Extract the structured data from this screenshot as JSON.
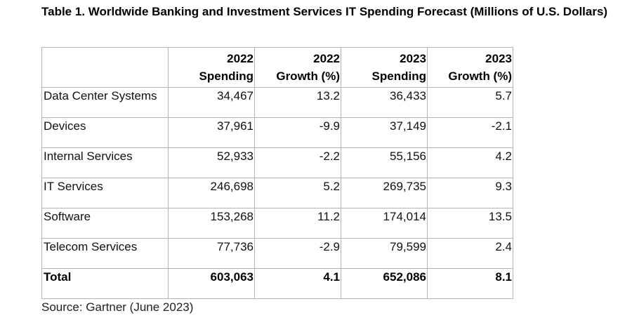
{
  "title": "Table 1. Worldwide Banking and Investment Services IT Spending Forecast (Millions of U.S. Dollars)",
  "headers": [
    {
      "line1": "",
      "line2": ""
    },
    {
      "line1": "2022",
      "line2": "Spending"
    },
    {
      "line1": "2022",
      "line2": "Growth (%)"
    },
    {
      "line1": "2023",
      "line2": "Spending"
    },
    {
      "line1": "2023",
      "line2": "Growth (%)"
    }
  ],
  "rows": [
    {
      "label": "Data Center Systems",
      "spend_2022": "34,467",
      "growth_2022": "13.2",
      "spend_2023": "36,433",
      "growth_2023": "5.7"
    },
    {
      "label": "Devices",
      "spend_2022": "37,961",
      "growth_2022": "-9.9",
      "spend_2023": "37,149",
      "growth_2023": "-2.1"
    },
    {
      "label": "Internal Services",
      "spend_2022": "52,933",
      "growth_2022": "-2.2",
      "spend_2023": "55,156",
      "growth_2023": "4.2"
    },
    {
      "label": "IT Services",
      "spend_2022": "246,698",
      "growth_2022": "5.2",
      "spend_2023": "269,735",
      "growth_2023": "9.3"
    },
    {
      "label": "Software",
      "spend_2022": "153,268",
      "growth_2022": "11.2",
      "spend_2023": "174,014",
      "growth_2023": "13.5"
    },
    {
      "label": "Telecom Services",
      "spend_2022": "77,736",
      "growth_2022": "-2.9",
      "spend_2023": "79,599",
      "growth_2023": "2.4"
    }
  ],
  "total": {
    "label": "Total",
    "spend_2022": "603,063",
    "growth_2022": "4.1",
    "spend_2023": "652,086",
    "growth_2023": "8.1"
  },
  "source": "Source: Gartner (June 2023)",
  "colors": {
    "text": "#111111",
    "border": "#b4b4b4",
    "background": "#ffffff"
  }
}
